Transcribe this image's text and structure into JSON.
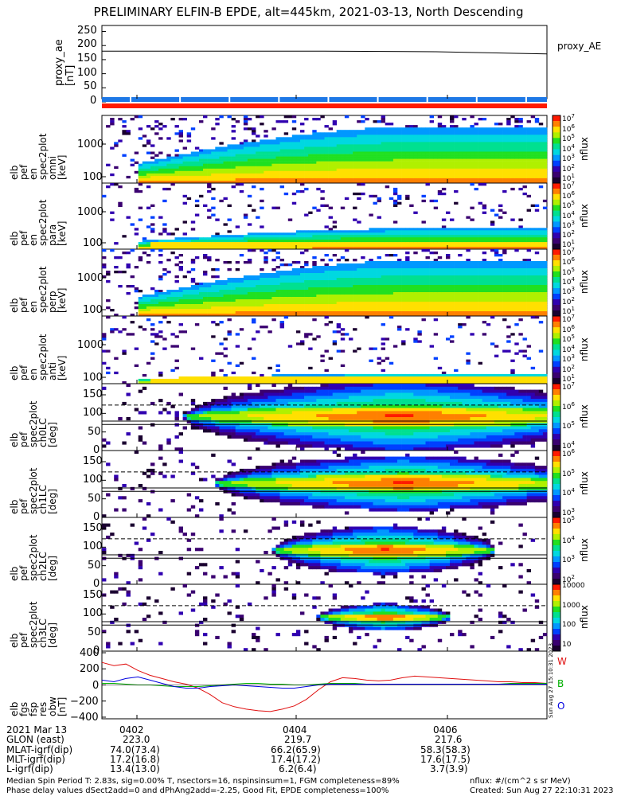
{
  "title": "PRELIMINARY ELFIN-B EPDE, alt=445km, 2021-03-13, North Descending",
  "panels": [
    {
      "id": "proxy_ae",
      "ylabel": [
        "proxy_ae",
        "[nT]"
      ],
      "side_label": "proxy_AE",
      "yticks": [
        "250",
        "200",
        "150",
        "100",
        "50",
        "0"
      ],
      "ylim": [
        0,
        260
      ]
    },
    {
      "id": "pef_spec",
      "ylabel": [
        "elb",
        "pef",
        "en",
        "spec2plot",
        "omni",
        "[keV]"
      ],
      "yticks": [
        "1000",
        "100"
      ],
      "cbar_ticks": [
        "10^7",
        "10^6",
        "10^5",
        "10^4",
        "10^3",
        "10^2",
        "10^1"
      ],
      "cbar_label": "nflux"
    },
    {
      "id": "pef_para",
      "ylabel": [
        "elb",
        "pef",
        "en",
        "spec2plot",
        "para",
        "[keV]"
      ],
      "yticks": [
        "1000",
        "100"
      ],
      "cbar_ticks": [
        "10^7",
        "10^6",
        "10^5",
        "10^4",
        "10^3",
        "10^2",
        "10^1"
      ],
      "cbar_label": "nflux"
    },
    {
      "id": "pef_perp",
      "ylabel": [
        "elb",
        "pef",
        "en",
        "spec2plot",
        "perp",
        "[keV]"
      ],
      "yticks": [
        "1000",
        "100"
      ],
      "cbar_ticks": [
        "10^7",
        "10^6",
        "10^5",
        "10^4",
        "10^3",
        "10^2",
        "10^1"
      ],
      "cbar_label": "nflux"
    },
    {
      "id": "pef_anti",
      "ylabel": [
        "elb",
        "pef",
        "en",
        "spec2plot",
        "anti",
        "[keV]"
      ],
      "yticks": [
        "1000",
        "100"
      ],
      "cbar_ticks": [
        "10^7",
        "10^6",
        "10^5",
        "10^4",
        "10^3",
        "10^2",
        "10^1"
      ],
      "cbar_label": "nflux"
    },
    {
      "id": "ch0",
      "ylabel": [
        "elb",
        "pef",
        "spec2plot",
        "ch0LC",
        "[deg]"
      ],
      "yticks": [
        "150",
        "100",
        "50",
        "0"
      ],
      "cbar_ticks": [
        "10^7",
        "10^6",
        "10^5",
        "10^4"
      ],
      "cbar_label": "nflux"
    },
    {
      "id": "ch1",
      "ylabel": [
        "elb",
        "pef",
        "spec2plot",
        "ch1LC",
        "[deg]"
      ],
      "yticks": [
        "150",
        "100",
        "50",
        "0"
      ],
      "cbar_ticks": [
        "10^6",
        "10^5",
        "10^4",
        "10^3"
      ],
      "cbar_label": "nflux"
    },
    {
      "id": "ch2",
      "ylabel": [
        "elb",
        "pef",
        "spec2plot",
        "ch2LC",
        "[deg]"
      ],
      "yticks": [
        "150",
        "100",
        "50",
        "0"
      ],
      "cbar_ticks": [
        "10^5",
        "10^4",
        "10^3",
        "10^2"
      ],
      "cbar_label": "nflux"
    },
    {
      "id": "ch3",
      "ylabel": [
        "elb",
        "pef",
        "spec2plot",
        "ch3LC",
        "[deg]"
      ],
      "yticks": [
        "150",
        "100",
        "50",
        "0"
      ],
      "cbar_ticks": [
        "10000",
        "1000",
        "100",
        "10"
      ],
      "cbar_label": "nflux"
    },
    {
      "id": "fgs",
      "ylabel": [
        "elb",
        "fgs",
        "fsp",
        "res",
        "obw",
        "[nT]"
      ],
      "yticks": [
        "400",
        "200",
        "0",
        "−200",
        "−400"
      ],
      "legend": [
        "W",
        "B",
        "O"
      ],
      "ylim": [
        -420,
        420
      ]
    }
  ],
  "bottom_table": {
    "row_labels": [
      "2021 Mar 13",
      "GLON (east)",
      "MLAT-igrf(dip)",
      "MLT-igrf(dip)",
      "L-igrf(dip)"
    ],
    "columns": [
      {
        "time": "0402",
        "glon": "223.0",
        "mlat": "74.0(73.4)",
        "mlt": "17.2(16.8)",
        "l": "13.4(13.0)"
      },
      {
        "time": "0404",
        "glon": "219.7",
        "mlat": "66.2(65.9)",
        "mlt": "17.4(17.2)",
        "l": "6.2(6.4)"
      },
      {
        "time": "0406",
        "glon": "217.6",
        "mlat": "58.3(58.3)",
        "mlt": "17.6(17.5)",
        "l": "3.7(3.9)"
      }
    ]
  },
  "footer": {
    "line1_left": "Median Spin Period T: 2.83s, sig=0.00% T, nsectors=16, nspinsinsum=1, FGM completeness=89%",
    "line2_left": "Phase delay values dSect2add=0 and dPhAng2add=-2.25, Good Fit, EPDE completeness=100%",
    "line1_right": "nflux: #/(cm^2 s sr MeV)",
    "line2_right": "Created: Sun Aug 27 22:10:31 2023",
    "stamp": "Sun Aug 27 15:10:31 2023"
  },
  "colors": {
    "W": "#e01010",
    "B": "#00b000",
    "O": "#0000e0",
    "bar_blue": "#1e78e6",
    "bar_red": "#ff1a00"
  },
  "chart_data": {
    "type": "heatmap",
    "title": "PRELIMINARY ELFIN-B EPDE, alt=445km, 2021-03-13, North Descending",
    "x_ticks": [
      "0402",
      "0404",
      "0406"
    ],
    "proxy_ae": {
      "x": [
        "start",
        "0402",
        "0404",
        "0406",
        "end"
      ],
      "values": [
        180,
        180,
        180,
        178,
        170
      ]
    },
    "fgs_res": {
      "W": [
        280,
        240,
        260,
        180,
        120,
        80,
        40,
        10,
        -40,
        -120,
        -220,
        -270,
        -300,
        -320,
        -330,
        -300,
        -260,
        -180,
        -60,
        40,
        90,
        80,
        60,
        50,
        60,
        90,
        110,
        100,
        90,
        80,
        70,
        60,
        50,
        40,
        40,
        30,
        30,
        20
      ],
      "B": [
        20,
        20,
        10,
        0,
        0,
        -10,
        -20,
        -20,
        -20,
        -10,
        0,
        10,
        20,
        20,
        10,
        10,
        0,
        0,
        10,
        20,
        20,
        20,
        10,
        10,
        10,
        10,
        10,
        10,
        10,
        10,
        10,
        10,
        10,
        10,
        20,
        20,
        20,
        20
      ],
      "O": [
        60,
        40,
        80,
        100,
        60,
        20,
        -20,
        -40,
        -40,
        -20,
        -10,
        0,
        -10,
        -20,
        -30,
        -40,
        -40,
        -20,
        0,
        10,
        10,
        10,
        10,
        10,
        10,
        10,
        10,
        10,
        10,
        10,
        10,
        10,
        10,
        10,
        10,
        10,
        10,
        10
      ]
    }
  }
}
